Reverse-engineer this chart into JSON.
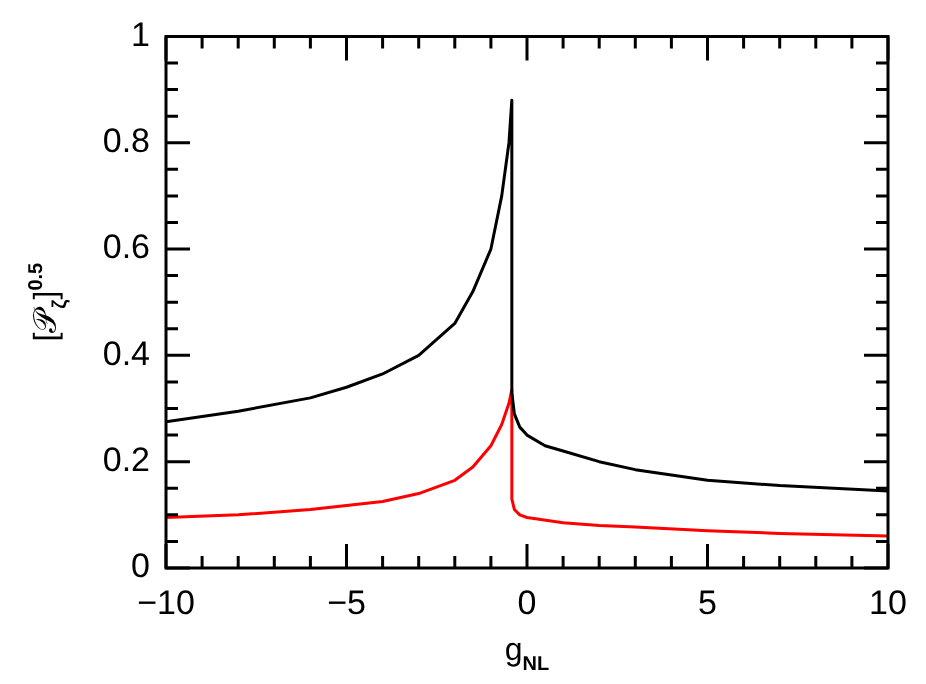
{
  "chart_data": {
    "type": "line",
    "xlabel": "g$_{NL}$",
    "ylabel": "[𝒫$_{ζ}$]$^{0.5}$",
    "xlim": [
      -10,
      10
    ],
    "ylim": [
      0,
      1
    ],
    "xticks": [
      -10,
      {
        "value": -9,
        "label": null
      },
      {
        "value": -8,
        "label": null
      },
      {
        "value": -7,
        "label": null
      },
      {
        "value": -6,
        "label": null
      },
      {
        "value": -5,
        "label": "−5"
      },
      {
        "value": -4,
        "label": null
      },
      {
        "value": -3,
        "label": null
      },
      {
        "value": -2,
        "label": null
      },
      {
        "value": -1,
        "label": null
      },
      0,
      {
        "value": 1,
        "label": null
      },
      {
        "value": 2,
        "label": null
      },
      {
        "value": 3,
        "label": null
      },
      {
        "value": 4,
        "label": null
      },
      5,
      {
        "value": 6,
        "label": null
      },
      {
        "value": 7,
        "label": null
      },
      {
        "value": 8,
        "label": null
      },
      {
        "value": 9,
        "label": null
      },
      10
    ],
    "yticks": [
      0,
      {
        "value": 0.05,
        "label": null
      },
      {
        "value": 0.1,
        "label": null
      },
      {
        "value": 0.15,
        "label": null
      },
      0.2,
      {
        "value": 0.25,
        "label": null
      },
      {
        "value": 0.3,
        "label": null
      },
      {
        "value": 0.35,
        "label": null
      },
      0.4,
      {
        "value": 0.45,
        "label": null
      },
      {
        "value": 0.5,
        "label": null
      },
      {
        "value": 0.55,
        "label": null
      },
      0.6,
      {
        "value": 0.65,
        "label": null
      },
      {
        "value": 0.7,
        "label": null
      },
      {
        "value": 0.75,
        "label": null
      },
      0.8,
      {
        "value": 0.85,
        "label": null
      },
      {
        "value": 0.9,
        "label": null
      },
      {
        "value": 0.95,
        "label": null
      },
      1
    ],
    "grid": false,
    "legend": false,
    "marker": "none",
    "line_style": "solid",
    "series": [
      {
        "color": "#000000",
        "x": [
          -10,
          -8,
          -6,
          -5,
          -4,
          -3,
          -2,
          -1.5,
          -1,
          -0.7,
          -0.5,
          -0.42,
          -0.42,
          -0.35,
          -0.2,
          0,
          0.5,
          1,
          2,
          3,
          5,
          7,
          10
        ],
        "values": [
          0.275,
          0.295,
          0.32,
          0.34,
          0.365,
          0.4,
          0.46,
          0.52,
          0.6,
          0.7,
          0.8,
          0.88,
          0.33,
          0.29,
          0.265,
          0.25,
          0.23,
          0.22,
          0.2,
          0.185,
          0.165,
          0.155,
          0.145
        ]
      },
      {
        "color": "#ff0000",
        "x": [
          -10,
          -8,
          -6,
          -4,
          -3,
          -2,
          -1.5,
          -1,
          -0.7,
          -0.5,
          -0.42,
          -0.42,
          -0.35,
          -0.2,
          0,
          1,
          2,
          3,
          5,
          7,
          10
        ],
        "values": [
          0.095,
          0.1,
          0.11,
          0.125,
          0.14,
          0.165,
          0.19,
          0.23,
          0.27,
          0.31,
          0.335,
          0.13,
          0.11,
          0.1,
          0.095,
          0.085,
          0.08,
          0.077,
          0.07,
          0.065,
          0.06
        ]
      }
    ]
  }
}
